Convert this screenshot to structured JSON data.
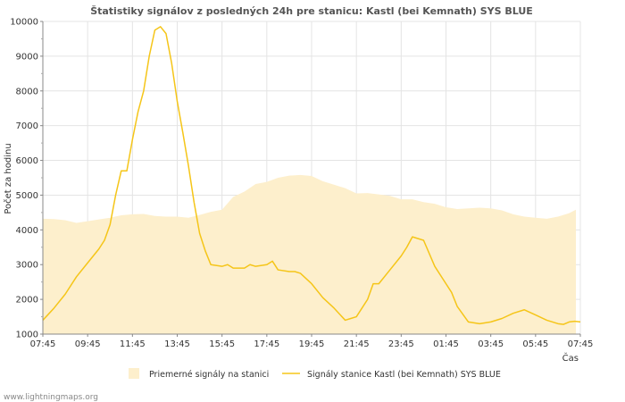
{
  "chart_data": {
    "type": "area+line",
    "title": "Štatistiky signálov z posledných 24h pre stanicu: Kastl (bei Kemnath) SYS BLUE",
    "xlabel": "Čas",
    "ylabel": "Počet za hodinu",
    "ylim": [
      1000,
      10000
    ],
    "yticks": [
      1000,
      2000,
      3000,
      4000,
      5000,
      6000,
      7000,
      8000,
      9000,
      10000
    ],
    "xlim": [
      0,
      24
    ],
    "x_ticks": [
      {
        "x": 0,
        "label": "07:45"
      },
      {
        "x": 2,
        "label": "09:45"
      },
      {
        "x": 4,
        "label": "11:45"
      },
      {
        "x": 6,
        "label": "13:45"
      },
      {
        "x": 8,
        "label": "15:45"
      },
      {
        "x": 10,
        "label": "17:45"
      },
      {
        "x": 12,
        "label": "19:45"
      },
      {
        "x": 14,
        "label": "21:45"
      },
      {
        "x": 16,
        "label": "23:45"
      },
      {
        "x": 18,
        "label": "01:45"
      },
      {
        "x": 20,
        "label": "03:45"
      },
      {
        "x": 22,
        "label": "05:45"
      },
      {
        "x": 24,
        "label": "07:45"
      }
    ],
    "series": [
      {
        "name": "Priemerné signály na stanici",
        "kind": "area",
        "color": "#fdefcc",
        "x": [
          0,
          0.5,
          1,
          1.5,
          2,
          2.5,
          3,
          3.5,
          4,
          4.5,
          5,
          5.5,
          6,
          6.5,
          7,
          7.5,
          8,
          8.5,
          9,
          9.5,
          10,
          10.5,
          11,
          11.5,
          12,
          12.5,
          13,
          13.5,
          14,
          14.5,
          15,
          15.5,
          16,
          16.5,
          17,
          17.5,
          18,
          18.5,
          19,
          19.5,
          20,
          20.5,
          21,
          21.5,
          22,
          22.5,
          23,
          23.5,
          23.8
        ],
        "values": [
          4320,
          4310,
          4280,
          4200,
          4250,
          4300,
          4350,
          4420,
          4450,
          4460,
          4400,
          4380,
          4380,
          4350,
          4430,
          4520,
          4580,
          4950,
          5100,
          5320,
          5380,
          5500,
          5560,
          5580,
          5550,
          5400,
          5300,
          5200,
          5050,
          5060,
          5020,
          4980,
          4880,
          4880,
          4800,
          4750,
          4650,
          4600,
          4620,
          4640,
          4620,
          4560,
          4450,
          4380,
          4350,
          4320,
          4380,
          4480,
          4580
        ]
      },
      {
        "name": "Signály stanice Kastl (bei Kemnath) SYS BLUE",
        "kind": "line",
        "color": "#f5c518",
        "x": [
          0,
          0.5,
          1,
          1.5,
          2,
          2.5,
          2.75,
          3,
          3.25,
          3.5,
          3.75,
          4,
          4.25,
          4.5,
          4.75,
          5,
          5.25,
          5.5,
          5.75,
          6,
          6.25,
          6.5,
          6.75,
          7,
          7.25,
          7.5,
          8,
          8.25,
          8.5,
          9,
          9.25,
          9.5,
          10,
          10.25,
          10.5,
          11,
          11.25,
          11.5,
          12,
          12.5,
          13,
          13.5,
          13.75,
          14,
          14.5,
          14.75,
          15,
          15.5,
          16,
          16.25,
          16.5,
          17,
          17.5,
          18,
          18.25,
          18.5,
          19,
          19.5,
          20,
          20.5,
          21,
          21.5,
          22,
          22.5,
          23,
          23.25,
          23.5,
          23.75,
          24
        ],
        "values": [
          1400,
          1750,
          2150,
          2650,
          3050,
          3450,
          3700,
          4150,
          5000,
          5700,
          5700,
          6600,
          7400,
          8000,
          9000,
          9750,
          9850,
          9650,
          8800,
          7700,
          6800,
          5850,
          4800,
          3900,
          3400,
          3000,
          2950,
          3000,
          2900,
          2900,
          3000,
          2950,
          3000,
          3100,
          2850,
          2800,
          2800,
          2750,
          2450,
          2050,
          1750,
          1400,
          1450,
          1500,
          2000,
          2450,
          2450,
          2850,
          3250,
          3500,
          3800,
          3700,
          2950,
          2450,
          2200,
          1800,
          1350,
          1300,
          1350,
          1450,
          1600,
          1700,
          1550,
          1400,
          1300,
          1280,
          1350,
          1370,
          1350
        ]
      }
    ],
    "legend_position": "bottom"
  },
  "footer": {
    "credit": "www.lightningmaps.org"
  }
}
